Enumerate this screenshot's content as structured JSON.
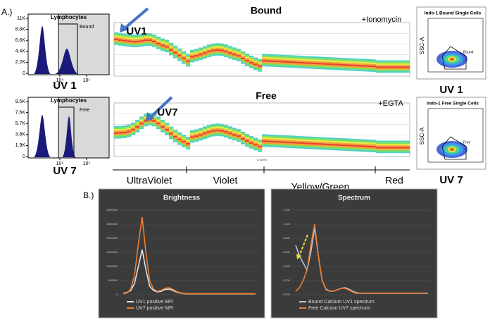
{
  "panel_a": {
    "label": "A.)",
    "axis_label": "Channel",
    "lasers": [
      "UltraViolet",
      "Violet",
      "Yellow/Green",
      "Red"
    ],
    "rows": [
      {
        "histogram": {
          "title": "Lymphocytes",
          "gate_label": "Bound",
          "yticks": [
            {
              "value": 0,
              "label": "0"
            },
            {
              "value": 2200,
              "label": "2.2K"
            },
            {
              "value": 4400,
              "label": "4.4K"
            },
            {
              "value": 6600,
              "label": "6.6K"
            },
            {
              "value": 8800,
              "label": "8.8K"
            },
            {
              "value": 11000,
              "label": "11K"
            }
          ],
          "xticks": [
            {
              "value": 10000,
              "label": "10⁴"
            },
            {
              "value": 100000,
              "label": "10⁵"
            }
          ],
          "sample_label": "UV 1"
        },
        "heatmap": {
          "title": "Bound",
          "treatment": "+Ionomycin",
          "arrow_label": "UV1"
        },
        "scatter": {
          "title": "Indo-1 Bound Single Cells",
          "y_label": "SSC-A",
          "gate_label": "Bound",
          "sample_label": "UV 1"
        }
      },
      {
        "histogram": {
          "title": "Lymphocytes",
          "gate_label": "Free",
          "yticks": [
            {
              "value": 0,
              "label": "0"
            },
            {
              "value": 1900,
              "label": "1.9K"
            },
            {
              "value": 3800,
              "label": "3.8K"
            },
            {
              "value": 5700,
              "label": "5.7K"
            },
            {
              "value": 7600,
              "label": "7.6K"
            },
            {
              "value": 9500,
              "label": "9.5K"
            }
          ],
          "xticks": [
            {
              "value": 10000,
              "label": "10⁴"
            },
            {
              "value": 100000,
              "label": "10⁵"
            }
          ],
          "sample_label": "UV 7"
        },
        "heatmap": {
          "title": "Free",
          "treatment": "+EGTA",
          "arrow_label": "UV7"
        },
        "scatter": {
          "title": "Indo-1 Free Single Cells",
          "y_label": "SSC-A",
          "gate_label": "Free",
          "sample_label": "UV 7"
        }
      }
    ]
  },
  "panel_b": {
    "label": "B.)",
    "chart_data": [
      {
        "type": "line",
        "title": "Brightness",
        "ylim": [
          0,
          3000000
        ],
        "yticks": [
          0,
          500000,
          1000000,
          1500000,
          2000000,
          2500000,
          3000000
        ],
        "series": [
          {
            "name": "UV1 positive MFI",
            "color": "#dce6f2",
            "values": [
              50000,
              80000,
              150000,
              400000,
              1000000,
              1600000,
              900000,
              300000,
              150000,
              100000,
              120000,
              180000,
              200000,
              160000,
              100000,
              60000,
              40000,
              30000,
              30000,
              30000,
              30000,
              30000,
              30000,
              30000,
              30000,
              30000,
              30000,
              30000,
              30000,
              30000,
              30000,
              30000,
              30000,
              30000,
              30000,
              30000
            ]
          },
          {
            "name": "UV7 positive MFI",
            "color": "#ed7d31",
            "values": [
              40000,
              60000,
              200000,
              700000,
              1800000,
              2750000,
              1500000,
              500000,
              200000,
              120000,
              150000,
              220000,
              250000,
              200000,
              120000,
              70000,
              45000,
              35000,
              35000,
              35000,
              35000,
              35000,
              35000,
              35000,
              35000,
              35000,
              35000,
              35000,
              35000,
              35000,
              35000,
              35000,
              35000,
              35000,
              35000,
              35000
            ]
          }
        ]
      },
      {
        "type": "line",
        "title": "Spectrum",
        "ylim": [
          0,
          1.2
        ],
        "yticks": [
          {
            "value": 0,
            "label": "0.000"
          },
          {
            "value": 0.2,
            "label": "0.200"
          },
          {
            "value": 0.4,
            "label": "0.400"
          },
          {
            "value": 0.6,
            "label": "0.600"
          },
          {
            "value": 0.8,
            "label": "0.800"
          },
          {
            "value": 1.0,
            "label": "1.000"
          },
          {
            "value": 1.2,
            "label": "1.200"
          }
        ],
        "series": [
          {
            "name": "Bound Calcium UV1 spectrum",
            "color": "#b4c7e7",
            "values": [
              0.7,
              0.55,
              0.45,
              0.35,
              0.6,
              0.95,
              0.55,
              0.2,
              0.08,
              0.05,
              0.05,
              0.07,
              0.09,
              0.1,
              0.08,
              0.05,
              0.03,
              0.02,
              0.02,
              0.02,
              0.02,
              0.02,
              0.02,
              0.02,
              0.02,
              0.02,
              0.02,
              0.02,
              0.02,
              0.02,
              0.02,
              0.02,
              0.02,
              0.02,
              0.02,
              0.02
            ]
          },
          {
            "name": "Free Calcium UV7 spectrum",
            "color": "#ed7d31",
            "values": [
              0.05,
              0.1,
              0.2,
              0.35,
              0.7,
              1.0,
              0.55,
              0.2,
              0.07,
              0.05,
              0.05,
              0.07,
              0.09,
              0.09,
              0.07,
              0.04,
              0.02,
              0.02,
              0.02,
              0.02,
              0.02,
              0.02,
              0.02,
              0.02,
              0.02,
              0.02,
              0.02,
              0.02,
              0.02,
              0.02,
              0.02,
              0.02,
              0.02,
              0.02,
              0.02,
              0.02
            ]
          }
        ]
      }
    ]
  }
}
